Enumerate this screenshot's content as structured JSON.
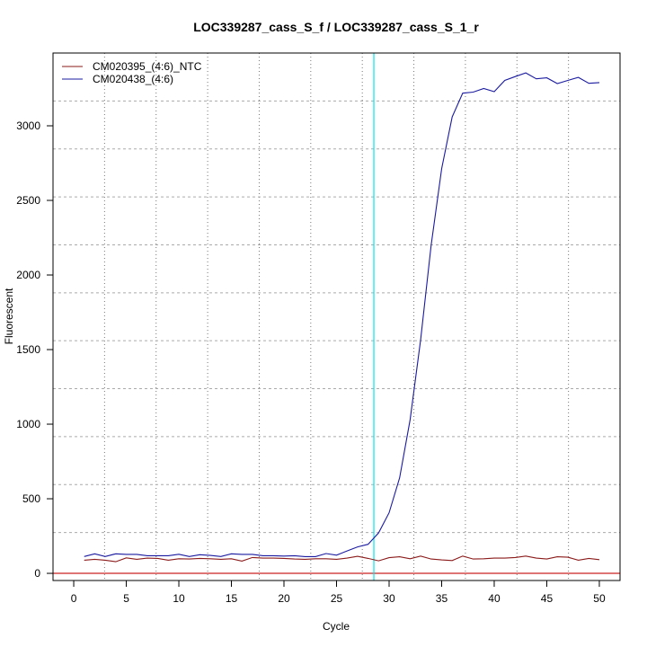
{
  "chart_data": {
    "type": "line",
    "title": "LOC339287_cass_S_f / LOC339287_cass_S_1_r",
    "xlabel": "Cycle",
    "ylabel": "Fluorescent",
    "xlim": [
      -1.97,
      51.97
    ],
    "ylim": [
      -48,
      3488
    ],
    "xticks": [
      0,
      5,
      10,
      15,
      20,
      25,
      30,
      35,
      40,
      45,
      50
    ],
    "yticks": [
      0,
      500,
      1000,
      1500,
      2000,
      2500,
      3000
    ],
    "grid": true,
    "legend_position": "top-left",
    "threshold": {
      "y": 0,
      "color": "#cc2222"
    },
    "cycle_marker": {
      "x": 28.55,
      "color": "#00e5ee"
    },
    "x": [
      1,
      2,
      3,
      4,
      5,
      6,
      7,
      8,
      9,
      10,
      11,
      12,
      13,
      14,
      15,
      16,
      17,
      18,
      19,
      20,
      21,
      22,
      23,
      24,
      25,
      26,
      27,
      28,
      29,
      30,
      31,
      32,
      33,
      34,
      35,
      36,
      37,
      38,
      39,
      40,
      41,
      42,
      43,
      44,
      45,
      46,
      47,
      48,
      49,
      50
    ],
    "series": [
      {
        "name": "CM020395_(4:6)_NTC",
        "color": "#8b1a1a",
        "values": [
          88,
          94,
          88,
          78,
          104,
          94,
          102,
          100,
          88,
          98,
          96,
          100,
          98,
          94,
          98,
          82,
          106,
          102,
          102,
          100,
          96,
          94,
          98,
          98,
          94,
          102,
          114,
          100,
          84,
          105,
          111,
          98,
          116,
          96,
          90,
          86,
          116,
          96,
          98,
          102,
          102,
          106,
          116,
          102,
          96,
          111,
          108,
          88,
          100,
          92
        ]
      },
      {
        "name": "CM020438_(4:6)",
        "color": "#1a1aa0",
        "values": [
          113,
          131,
          113,
          131,
          127,
          127,
          118,
          118,
          118,
          128,
          113,
          125,
          120,
          113,
          131,
          127,
          127,
          118,
          118,
          116,
          118,
          112,
          112,
          133,
          122,
          150,
          177,
          195,
          271,
          406,
          640,
          1030,
          1566,
          2200,
          2713,
          3060,
          3219,
          3226,
          3250,
          3229,
          3304,
          3330,
          3355,
          3315,
          3322,
          3283,
          3304,
          3325,
          3285,
          3290
        ]
      }
    ]
  }
}
